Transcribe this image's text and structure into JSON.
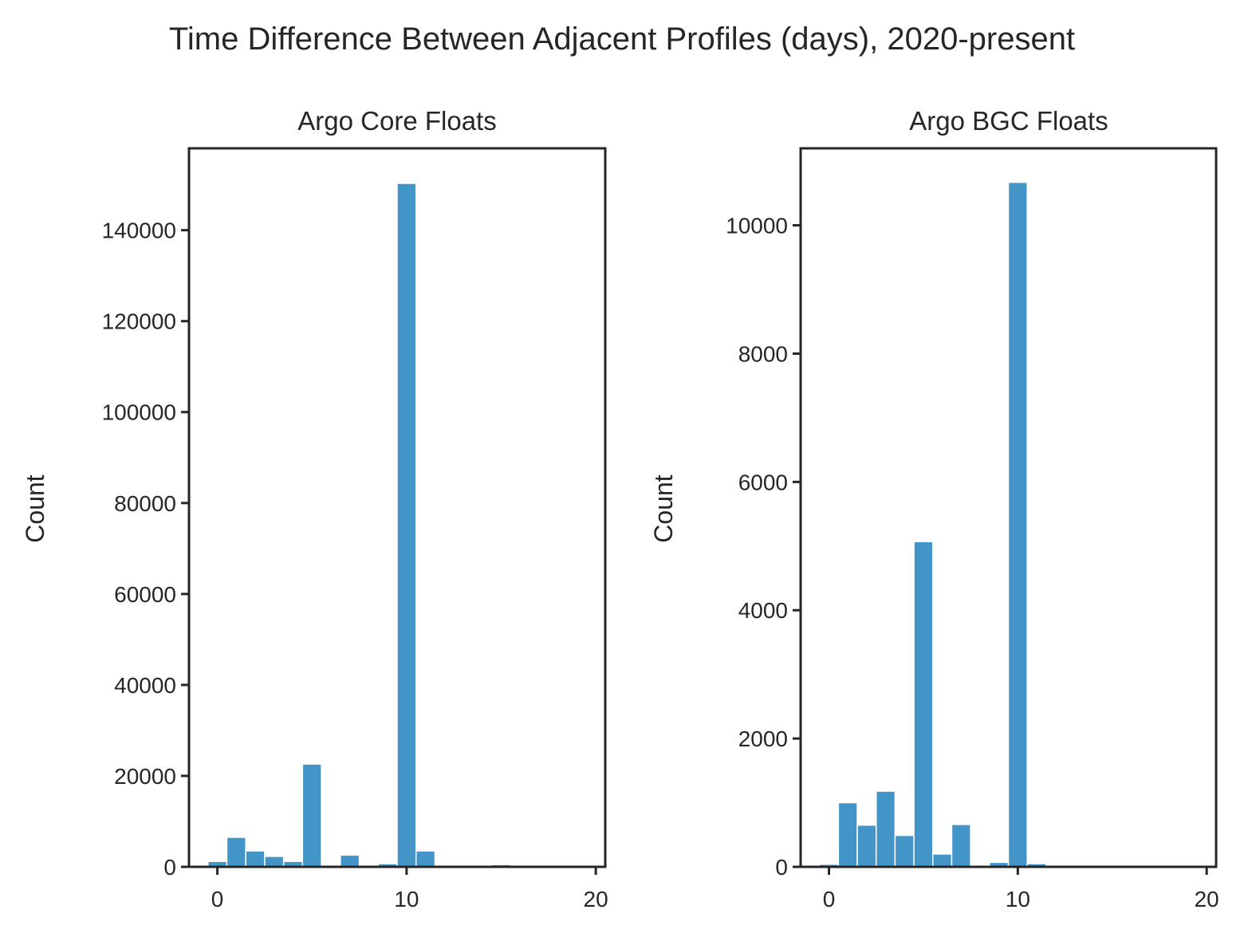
{
  "figure": {
    "title": "Time Difference Between Adjacent Profiles (days), 2020-present"
  },
  "chart_data": [
    {
      "type": "bar",
      "title": "Argo Core Floats",
      "xlabel": "",
      "ylabel": "Count",
      "xlim": [
        -1.5,
        20.5
      ],
      "ylim": [
        0,
        158000
      ],
      "bin_width": 1,
      "bin_starts": [
        -0.5,
        0.5,
        1.5,
        2.5,
        3.5,
        4.5,
        5.5,
        6.5,
        7.5,
        8.5,
        9.5,
        10.5,
        11.5,
        12.5,
        13.5,
        14.5,
        15.5,
        16.5,
        17.5,
        18.5
      ],
      "values": [
        1200,
        6500,
        3500,
        2300,
        1200,
        22600,
        0,
        2600,
        0,
        700,
        150300,
        3500,
        200,
        100,
        100,
        500,
        100,
        50,
        50,
        50
      ],
      "x_ticks": [
        0,
        10,
        20
      ],
      "x_tick_labels": [
        "0",
        "10",
        "20"
      ],
      "y_ticks": [
        0,
        20000,
        40000,
        60000,
        80000,
        100000,
        120000,
        140000
      ],
      "y_tick_labels": [
        "0",
        "20000",
        "40000",
        "60000",
        "80000",
        "100000",
        "120000",
        "140000"
      ],
      "color": "#4394c7"
    },
    {
      "type": "bar",
      "title": "Argo BGC Floats",
      "xlabel": "",
      "ylabel": "Count",
      "xlim": [
        -1.5,
        20.5
      ],
      "ylim": [
        0,
        11200
      ],
      "bin_width": 1,
      "bin_starts": [
        -0.5,
        0.5,
        1.5,
        2.5,
        3.5,
        4.5,
        5.5,
        6.5,
        7.5,
        8.5,
        9.5,
        10.5,
        11.5,
        12.5,
        13.5,
        14.5,
        15.5,
        16.5,
        17.5,
        18.5
      ],
      "values": [
        40,
        1000,
        650,
        1180,
        490,
        5070,
        200,
        660,
        0,
        70,
        10670,
        50,
        0,
        0,
        0,
        0,
        0,
        0,
        0,
        0
      ],
      "x_ticks": [
        0,
        10,
        20
      ],
      "x_tick_labels": [
        "0",
        "10",
        "20"
      ],
      "y_ticks": [
        0,
        2000,
        4000,
        6000,
        8000,
        10000
      ],
      "y_tick_labels": [
        "0",
        "2000",
        "4000",
        "6000",
        "8000",
        "10000"
      ],
      "color": "#4394c7"
    }
  ]
}
